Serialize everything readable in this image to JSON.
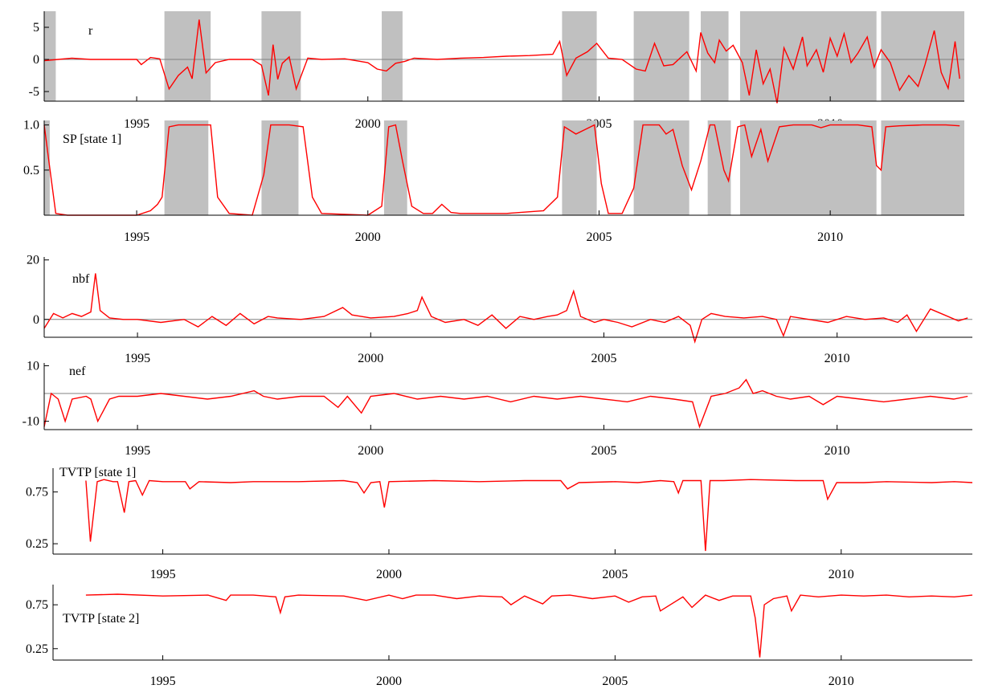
{
  "colors": {
    "series": "#ff0000",
    "shading": "#c0c0c0",
    "axis": "#000000",
    "zero_line": "#808080"
  },
  "x_axis": {
    "range": [
      1993.0,
      2012.9
    ],
    "ticks": [
      1995,
      2000,
      2005,
      2010
    ],
    "tick_labels": [
      "1995",
      "2000",
      "2005",
      "2010"
    ]
  },
  "chart_data": [
    {
      "type": "line",
      "panel": "r",
      "label": "r",
      "ylim": [
        -6.5,
        7.5
      ],
      "yticks": [
        5,
        0,
        -5
      ],
      "ytick_labels": [
        "5",
        "0",
        "-5"
      ],
      "zero_line": true,
      "shaded_regimes": [
        [
          1993.0,
          1993.25
        ],
        [
          1995.6,
          1996.6
        ],
        [
          1997.7,
          1998.55
        ],
        [
          2000.3,
          2000.75
        ],
        [
          2004.2,
          2004.95
        ],
        [
          2005.75,
          2006.95
        ],
        [
          2007.2,
          2007.8
        ],
        [
          2008.05,
          2011.0
        ],
        [
          2011.1,
          2013.05
        ]
      ],
      "x": [
        1993.0,
        1993.3,
        1993.6,
        1994.0,
        1994.5,
        1995.0,
        1995.1,
        1995.3,
        1995.5,
        1995.7,
        1995.9,
        1996.1,
        1996.2,
        1996.35,
        1996.5,
        1996.7,
        1997.0,
        1997.5,
        1997.7,
        1997.85,
        1997.95,
        1998.05,
        1998.15,
        1998.3,
        1998.45,
        1998.7,
        1999.0,
        1999.5,
        2000.0,
        2000.2,
        2000.4,
        2000.6,
        2000.8,
        2001.0,
        2001.5,
        2002.0,
        2002.5,
        2003.0,
        2003.5,
        2004.0,
        2004.15,
        2004.3,
        2004.5,
        2004.75,
        2004.95,
        2005.2,
        2005.5,
        2005.8,
        2006.0,
        2006.2,
        2006.4,
        2006.6,
        2006.9,
        2007.1,
        2007.2,
        2007.35,
        2007.5,
        2007.6,
        2007.75,
        2007.9,
        2008.1,
        2008.25,
        2008.4,
        2008.55,
        2008.7,
        2008.85,
        2009.0,
        2009.2,
        2009.4,
        2009.5,
        2009.7,
        2009.85,
        2010.0,
        2010.15,
        2010.3,
        2010.45,
        2010.6,
        2010.8,
        2010.95,
        2011.1,
        2011.3,
        2011.5,
        2011.7,
        2011.9,
        2012.05,
        2012.25,
        2012.4,
        2012.55,
        2012.7,
        2012.8
      ],
      "y": [
        -0.2,
        0.0,
        0.2,
        0.0,
        0.0,
        0.0,
        -0.8,
        0.3,
        0.1,
        -4.6,
        -2.5,
        -1.2,
        -3.0,
        6.2,
        -2.1,
        -0.5,
        0.0,
        0.0,
        -0.9,
        -5.6,
        2.3,
        -3.1,
        -0.6,
        0.4,
        -4.6,
        0.2,
        0.0,
        0.1,
        -0.5,
        -1.5,
        -1.8,
        -0.6,
        -0.3,
        0.2,
        0.0,
        0.2,
        0.3,
        0.5,
        0.6,
        0.8,
        2.8,
        -2.5,
        0.2,
        1.2,
        2.5,
        0.2,
        0.0,
        -1.5,
        -1.8,
        2.5,
        -1.0,
        -0.8,
        1.2,
        -1.8,
        4.2,
        1.0,
        -0.5,
        3.0,
        1.3,
        2.2,
        -0.5,
        -5.6,
        1.5,
        -3.8,
        -1.5,
        -6.8,
        1.8,
        -1.5,
        3.5,
        -1.0,
        1.5,
        -2.0,
        3.3,
        0.5,
        4.0,
        -0.5,
        1.0,
        3.5,
        -1.2,
        1.5,
        -0.5,
        -4.8,
        -2.5,
        -4.2,
        -0.8,
        4.5,
        -2.0,
        -4.5,
        2.8,
        -3.0
      ]
    },
    {
      "type": "line",
      "panel": "sp_state1",
      "label": "SP [state 1]",
      "ylim": [
        0.0,
        1.05
      ],
      "yticks": [
        1.0,
        0.5
      ],
      "ytick_labels": [
        "1.0",
        "0.5"
      ],
      "zero_line": false,
      "shaded_regimes": [
        [
          1993.0,
          1993.12
        ],
        [
          1995.6,
          1996.55
        ],
        [
          1997.7,
          1998.5
        ],
        [
          2000.35,
          2000.85
        ],
        [
          2004.2,
          2004.95
        ],
        [
          2005.75,
          2006.95
        ],
        [
          2007.35,
          2007.85
        ],
        [
          2008.05,
          2011.0
        ],
        [
          2011.1,
          2013.05
        ]
      ],
      "x": [
        1993.0,
        1993.1,
        1993.25,
        1993.5,
        1994.0,
        1994.5,
        1995.0,
        1995.3,
        1995.45,
        1995.55,
        1995.7,
        1995.9,
        1996.3,
        1996.6,
        1996.75,
        1997.0,
        1997.5,
        1997.75,
        1997.9,
        1998.3,
        1998.6,
        1998.8,
        1999.0,
        2000.0,
        2000.3,
        2000.45,
        2000.6,
        2000.75,
        2000.95,
        2001.2,
        2001.4,
        2001.6,
        2001.8,
        2002.0,
        2003.0,
        2003.8,
        2004.1,
        2004.25,
        2004.5,
        2004.7,
        2004.9,
        2005.05,
        2005.2,
        2005.5,
        2005.75,
        2005.95,
        2006.3,
        2006.45,
        2006.6,
        2006.8,
        2007.0,
        2007.2,
        2007.4,
        2007.5,
        2007.7,
        2007.8,
        2008.0,
        2008.15,
        2008.3,
        2008.5,
        2008.65,
        2008.9,
        2009.2,
        2009.6,
        2009.8,
        2010.0,
        2010.3,
        2010.6,
        2010.9,
        2011.0,
        2011.1,
        2011.2,
        2011.5,
        2012.0,
        2012.5,
        2012.8
      ],
      "y": [
        1.0,
        0.6,
        0.02,
        0.0,
        0.0,
        0.0,
        0.0,
        0.05,
        0.12,
        0.2,
        0.98,
        1.0,
        1.0,
        1.0,
        0.2,
        0.02,
        0.0,
        0.45,
        1.0,
        1.0,
        0.98,
        0.2,
        0.02,
        0.0,
        0.1,
        0.98,
        1.0,
        0.6,
        0.1,
        0.02,
        0.02,
        0.12,
        0.03,
        0.02,
        0.02,
        0.05,
        0.2,
        0.98,
        0.9,
        0.95,
        1.0,
        0.35,
        0.02,
        0.02,
        0.3,
        1.0,
        1.0,
        0.9,
        0.95,
        0.55,
        0.28,
        0.6,
        1.0,
        1.0,
        0.5,
        0.38,
        0.98,
        1.0,
        0.65,
        0.95,
        0.6,
        0.98,
        1.0,
        1.0,
        0.97,
        1.0,
        1.0,
        1.0,
        0.98,
        0.55,
        0.5,
        0.98,
        0.99,
        1.0,
        1.0,
        0.99
      ]
    },
    {
      "type": "line",
      "panel": "nbf",
      "label": "nbf",
      "ylim": [
        -6.0,
        21.0
      ],
      "yticks": [
        20,
        0
      ],
      "ytick_labels": [
        "20",
        "0"
      ],
      "zero_line": true,
      "x": [
        1993.0,
        1993.2,
        1993.4,
        1993.6,
        1993.8,
        1994.0,
        1994.1,
        1994.2,
        1994.4,
        1994.7,
        1995.0,
        1995.5,
        1996.0,
        1996.3,
        1996.6,
        1996.9,
        1997.2,
        1997.5,
        1997.8,
        1998.0,
        1998.5,
        1999.0,
        1999.4,
        1999.6,
        2000.0,
        2000.5,
        2000.8,
        2001.0,
        2001.1,
        2001.3,
        2001.6,
        2002.0,
        2002.3,
        2002.6,
        2002.9,
        2003.2,
        2003.5,
        2003.8,
        2004.0,
        2004.2,
        2004.35,
        2004.5,
        2004.8,
        2005.0,
        2005.3,
        2005.6,
        2006.0,
        2006.3,
        2006.6,
        2006.85,
        2006.95,
        2007.1,
        2007.3,
        2007.6,
        2008.0,
        2008.4,
        2008.7,
        2008.85,
        2009.0,
        2009.4,
        2009.8,
        2010.2,
        2010.6,
        2011.0,
        2011.3,
        2011.5,
        2011.7,
        2012.0,
        2012.3,
        2012.6,
        2012.8
      ],
      "y": [
        -3.0,
        2.0,
        0.5,
        2.0,
        1.0,
        2.5,
        15.5,
        3.0,
        0.5,
        0.0,
        0.0,
        -1.0,
        0.0,
        -2.5,
        1.0,
        -2.0,
        2.0,
        -1.5,
        1.0,
        0.5,
        0.0,
        1.0,
        4.0,
        1.5,
        0.5,
        1.0,
        2.0,
        3.0,
        7.5,
        1.0,
        -1.0,
        0.0,
        -2.0,
        1.5,
        -3.0,
        1.0,
        0.0,
        1.0,
        1.5,
        3.0,
        9.5,
        1.0,
        -1.0,
        0.0,
        -1.0,
        -2.5,
        0.0,
        -1.0,
        1.0,
        -2.0,
        -7.5,
        0.0,
        2.0,
        1.0,
        0.5,
        1.0,
        0.0,
        -5.5,
        1.0,
        0.0,
        -1.0,
        1.0,
        0.0,
        0.5,
        -1.0,
        1.5,
        -4.0,
        3.5,
        1.5,
        -0.5,
        0.5
      ]
    },
    {
      "type": "line",
      "panel": "nef",
      "label": "nef",
      "ylim": [
        -13.0,
        11.0
      ],
      "yticks": [
        10,
        -10
      ],
      "ytick_labels": [
        "10",
        "-10"
      ],
      "zero_line": true,
      "x": [
        1993.0,
        1993.15,
        1993.3,
        1993.45,
        1993.6,
        1993.9,
        1994.0,
        1994.15,
        1994.4,
        1994.6,
        1995.0,
        1995.5,
        1996.0,
        1996.5,
        1997.0,
        1997.5,
        1997.7,
        1998.0,
        1998.5,
        1999.0,
        1999.3,
        1999.5,
        1999.8,
        2000.0,
        2000.5,
        2001.0,
        2001.5,
        2002.0,
        2002.5,
        2003.0,
        2003.5,
        2004.0,
        2004.5,
        2005.0,
        2005.5,
        2006.0,
        2006.5,
        2006.9,
        2007.05,
        2007.3,
        2007.6,
        2007.9,
        2008.05,
        2008.2,
        2008.4,
        2008.7,
        2009.0,
        2009.4,
        2009.7,
        2010.0,
        2010.5,
        2011.0,
        2011.5,
        2012.0,
        2012.5,
        2012.8
      ],
      "y": [
        -12.0,
        0.0,
        -2.0,
        -10.0,
        -2.0,
        -1.0,
        -2.0,
        -10.0,
        -2.0,
        -1.0,
        -1.0,
        0.0,
        -1.0,
        -2.0,
        -1.0,
        1.0,
        -1.0,
        -2.0,
        -1.0,
        -1.0,
        -5.0,
        -1.0,
        -7.0,
        -1.0,
        0.0,
        -2.0,
        -1.0,
        -2.0,
        -1.0,
        -3.0,
        -1.0,
        -2.0,
        -1.0,
        -2.0,
        -3.0,
        -1.0,
        -2.0,
        -3.0,
        -12.0,
        -1.0,
        0.0,
        2.0,
        5.0,
        0.0,
        1.0,
        -1.0,
        -2.0,
        -1.0,
        -4.0,
        -1.0,
        -2.0,
        -3.0,
        -2.0,
        -1.0,
        -2.0,
        -1.0
      ]
    },
    {
      "type": "line",
      "panel": "tvtp_state1",
      "label": "TVTP [state 1]",
      "ylim": [
        0.15,
        0.98
      ],
      "yticks": [
        0.75,
        0.25
      ],
      "ytick_labels": [
        "0.75",
        "0.25"
      ],
      "zero_line": false,
      "x": [
        1993.3,
        1993.4,
        1993.55,
        1993.7,
        1993.9,
        1994.0,
        1994.15,
        1994.25,
        1994.4,
        1994.55,
        1994.7,
        1995.0,
        1995.5,
        1995.6,
        1995.8,
        1996.5,
        1997.0,
        1998.0,
        1999.0,
        1999.3,
        1999.45,
        1999.6,
        1999.8,
        1999.9,
        2000.0,
        2001.0,
        2002.0,
        2003.0,
        2003.8,
        2003.95,
        2004.2,
        2005.0,
        2005.5,
        2006.0,
        2006.3,
        2006.4,
        2006.5,
        2006.9,
        2007.0,
        2007.1,
        2007.4,
        2008.0,
        2009.0,
        2009.6,
        2009.7,
        2009.9,
        2010.5,
        2011.0,
        2012.0,
        2012.5,
        2012.9
      ],
      "y": [
        0.86,
        0.27,
        0.85,
        0.87,
        0.85,
        0.85,
        0.55,
        0.85,
        0.86,
        0.72,
        0.86,
        0.85,
        0.85,
        0.78,
        0.85,
        0.84,
        0.85,
        0.85,
        0.86,
        0.84,
        0.74,
        0.84,
        0.85,
        0.6,
        0.85,
        0.86,
        0.85,
        0.86,
        0.86,
        0.78,
        0.84,
        0.85,
        0.84,
        0.86,
        0.85,
        0.74,
        0.86,
        0.86,
        0.18,
        0.86,
        0.86,
        0.87,
        0.86,
        0.86,
        0.68,
        0.84,
        0.84,
        0.85,
        0.84,
        0.85,
        0.84
      ]
    },
    {
      "type": "line",
      "panel": "tvtp_state2",
      "label": "TVTP [state 2]",
      "ylim": [
        0.12,
        0.98
      ],
      "yticks": [
        0.75,
        0.25
      ],
      "ytick_labels": [
        "0.75",
        "0.25"
      ],
      "zero_line": false,
      "x": [
        1993.3,
        1994.0,
        1995.0,
        1996.0,
        1996.4,
        1996.5,
        1997.0,
        1997.5,
        1997.6,
        1997.7,
        1998.0,
        1999.0,
        1999.5,
        2000.0,
        2000.3,
        2000.6,
        2001.0,
        2001.5,
        2002.0,
        2002.5,
        2002.7,
        2003.0,
        2003.4,
        2003.6,
        2004.0,
        2004.5,
        2005.0,
        2005.3,
        2005.6,
        2005.9,
        2006.0,
        2006.5,
        2006.7,
        2007.0,
        2007.3,
        2007.6,
        2008.0,
        2008.1,
        2008.2,
        2008.3,
        2008.5,
        2008.8,
        2008.9,
        2009.1,
        2009.5,
        2010.0,
        2010.5,
        2011.0,
        2011.5,
        2012.0,
        2012.5,
        2012.9
      ],
      "y": [
        0.86,
        0.87,
        0.85,
        0.86,
        0.8,
        0.86,
        0.86,
        0.84,
        0.66,
        0.84,
        0.86,
        0.85,
        0.8,
        0.86,
        0.82,
        0.86,
        0.86,
        0.82,
        0.85,
        0.84,
        0.75,
        0.85,
        0.76,
        0.85,
        0.86,
        0.82,
        0.85,
        0.78,
        0.84,
        0.85,
        0.68,
        0.84,
        0.72,
        0.86,
        0.8,
        0.85,
        0.85,
        0.6,
        0.15,
        0.75,
        0.82,
        0.85,
        0.68,
        0.86,
        0.84,
        0.86,
        0.85,
        0.86,
        0.84,
        0.85,
        0.84,
        0.86
      ]
    }
  ]
}
